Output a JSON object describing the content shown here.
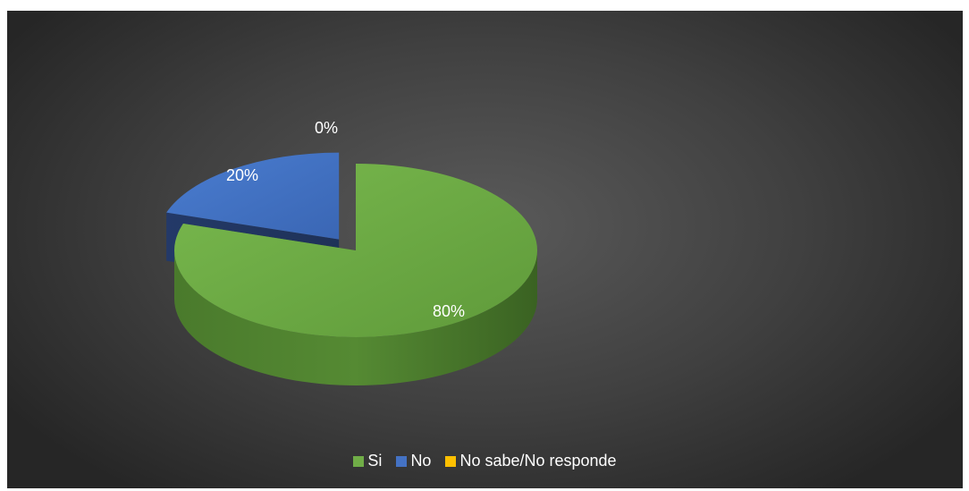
{
  "chart_data": {
    "type": "pie",
    "style": "3d-exploded",
    "categories": [
      "Si",
      "No",
      "No sabe/No responde"
    ],
    "values": [
      80,
      20,
      0
    ],
    "data_labels": [
      "80%",
      "20%",
      "0%"
    ],
    "colors": [
      "#70ad47",
      "#4472c4",
      "#ffc000"
    ],
    "legend_position": "bottom"
  }
}
